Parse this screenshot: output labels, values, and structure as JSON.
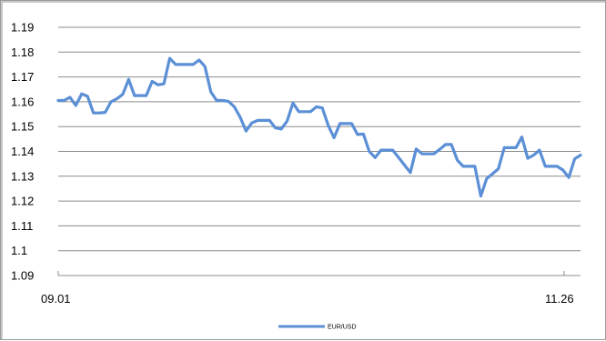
{
  "chart_data": {
    "type": "line",
    "xlabel": "",
    "ylabel": "",
    "x_tick_labels": [
      "09.01",
      "11.26"
    ],
    "y_ticks": [
      1.09,
      1.1,
      1.11,
      1.12,
      1.13,
      1.14,
      1.15,
      1.16,
      1.17,
      1.18,
      1.19
    ],
    "y_tick_labels": [
      "1.09",
      "1.1",
      "1.11",
      "1.12",
      "1.13",
      "1.14",
      "1.15",
      "1.16",
      "1.17",
      "1.18",
      "1.19"
    ],
    "ylim": [
      1.09,
      1.19
    ],
    "grid": "horizontal",
    "legend": "bottom",
    "series": [
      {
        "name": "EUR/USD",
        "color": "#5b8fd6",
        "values": [
          1.1605,
          1.1605,
          1.1618,
          1.1585,
          1.1632,
          1.1622,
          1.1555,
          1.1555,
          1.1557,
          1.16,
          1.1612,
          1.163,
          1.169,
          1.1625,
          1.1625,
          1.1625,
          1.1682,
          1.1668,
          1.1672,
          1.1775,
          1.175,
          1.175,
          1.175,
          1.175,
          1.1768,
          1.1742,
          1.164,
          1.1605,
          1.1605,
          1.1602,
          1.158,
          1.1538,
          1.1482,
          1.1515,
          1.1525,
          1.1525,
          1.1525,
          1.1495,
          1.149,
          1.1522,
          1.1595,
          1.156,
          1.156,
          1.156,
          1.158,
          1.1575,
          1.1505,
          1.1455,
          1.1512,
          1.1512,
          1.1512,
          1.1468,
          1.147,
          1.14,
          1.1375,
          1.1405,
          1.1405,
          1.1405,
          1.1375,
          1.1345,
          1.1315,
          1.141,
          1.139,
          1.139,
          1.139,
          1.1408,
          1.1428,
          1.1428,
          1.1365,
          1.134,
          1.134,
          1.134,
          1.122,
          1.129,
          1.131,
          1.133,
          1.1415,
          1.1415,
          1.1415,
          1.1458,
          1.1372,
          1.1385,
          1.1405,
          1.134,
          1.134,
          1.134,
          1.1325,
          1.1295,
          1.137,
          1.1385
        ]
      }
    ]
  }
}
